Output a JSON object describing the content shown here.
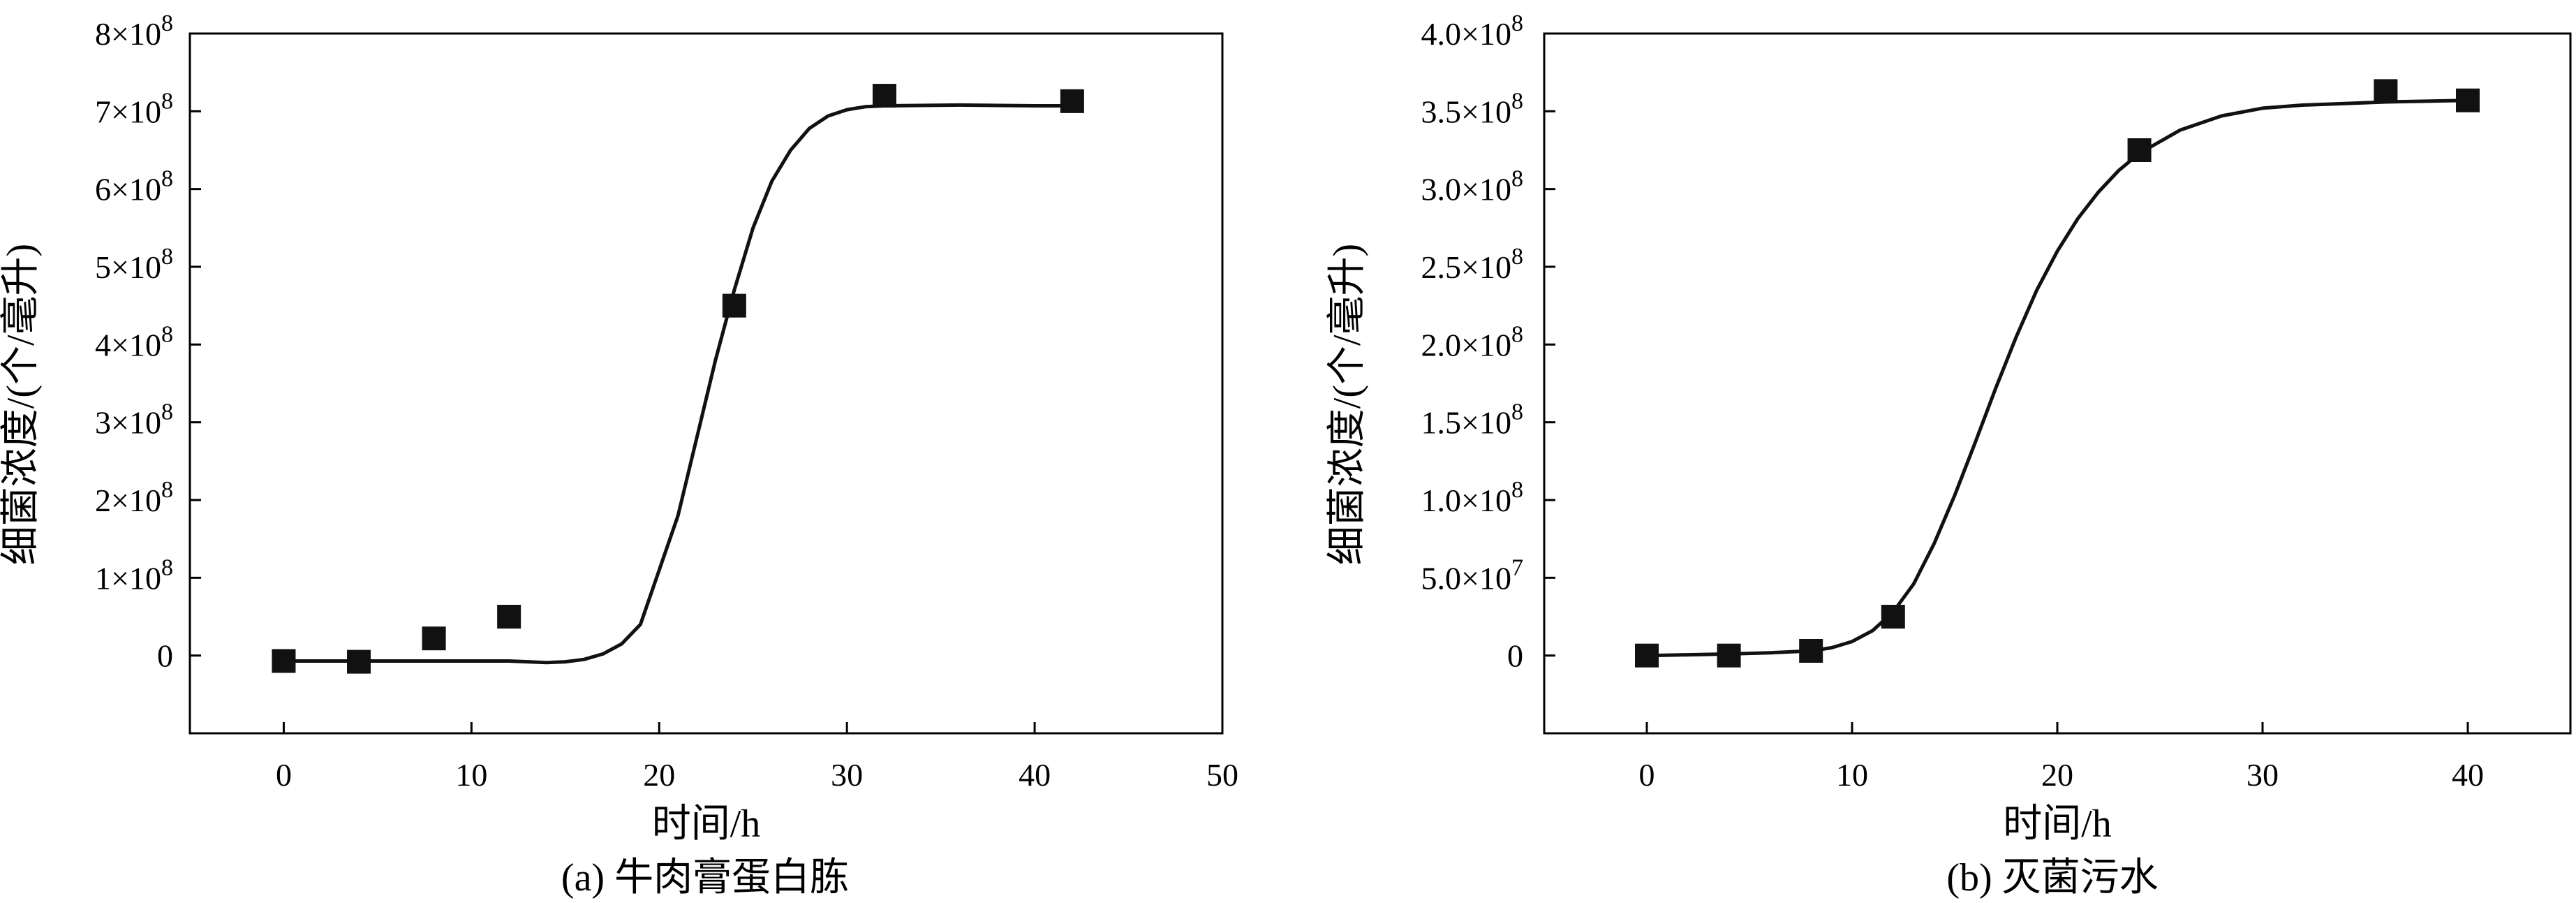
{
  "chart_data": [
    {
      "type": "scatter",
      "caption": "(a) 牛肉膏蛋白胨",
      "xlabel": "时间/h",
      "ylabel": "细菌浓度/(个/毫升)",
      "xlim": [
        -5,
        50
      ],
      "ylim": [
        -100000000,
        800000000
      ],
      "xticks": [
        0,
        10,
        20,
        30,
        40,
        50
      ],
      "yticks": [
        {
          "value": 0,
          "mantissa": "0",
          "exponent": ""
        },
        {
          "value": 100000000,
          "mantissa": "1×10",
          "exponent": "8"
        },
        {
          "value": 200000000,
          "mantissa": "2×10",
          "exponent": "8"
        },
        {
          "value": 300000000,
          "mantissa": "3×10",
          "exponent": "8"
        },
        {
          "value": 400000000,
          "mantissa": "4×10",
          "exponent": "8"
        },
        {
          "value": 500000000,
          "mantissa": "5×10",
          "exponent": "8"
        },
        {
          "value": 600000000,
          "mantissa": "6×10",
          "exponent": "8"
        },
        {
          "value": 700000000,
          "mantissa": "7×10",
          "exponent": "8"
        },
        {
          "value": 800000000,
          "mantissa": "8×10",
          "exponent": "8"
        }
      ],
      "points": [
        {
          "x": 0,
          "y": -7000000
        },
        {
          "x": 4,
          "y": -8000000
        },
        {
          "x": 8,
          "y": 22000000
        },
        {
          "x": 12,
          "y": 50000000
        },
        {
          "x": 24,
          "y": 450000000
        },
        {
          "x": 32,
          "y": 720000000
        },
        {
          "x": 42,
          "y": 713000000
        }
      ],
      "fit_curve": [
        {
          "x": 0,
          "y": -7000000
        },
        {
          "x": 4,
          "y": -7000000
        },
        {
          "x": 8,
          "y": -7000000
        },
        {
          "x": 12,
          "y": -7000000
        },
        {
          "x": 13,
          "y": -8000000
        },
        {
          "x": 14,
          "y": -9000000
        },
        {
          "x": 15,
          "y": -8000000
        },
        {
          "x": 16,
          "y": -5000000
        },
        {
          "x": 17,
          "y": 2000000
        },
        {
          "x": 18,
          "y": 15000000
        },
        {
          "x": 19,
          "y": 40000000
        },
        {
          "x": 20,
          "y": 110000000
        },
        {
          "x": 21,
          "y": 180000000
        },
        {
          "x": 22,
          "y": 280000000
        },
        {
          "x": 23,
          "y": 380000000
        },
        {
          "x": 24,
          "y": 470000000
        },
        {
          "x": 25,
          "y": 550000000
        },
        {
          "x": 26,
          "y": 610000000
        },
        {
          "x": 27,
          "y": 650000000
        },
        {
          "x": 28,
          "y": 678000000
        },
        {
          "x": 29,
          "y": 694000000
        },
        {
          "x": 30,
          "y": 702000000
        },
        {
          "x": 31,
          "y": 706000000
        },
        {
          "x": 32,
          "y": 707000000
        },
        {
          "x": 36,
          "y": 708000000
        },
        {
          "x": 40,
          "y": 707000000
        },
        {
          "x": 42,
          "y": 707000000
        }
      ]
    },
    {
      "type": "scatter",
      "caption": "(b) 灭菌污水",
      "xlabel": "时间/h",
      "ylabel": "细菌浓度/(个/毫升)",
      "xlim": [
        -5,
        45
      ],
      "ylim": [
        -50000000,
        400000000
      ],
      "xticks": [
        0,
        10,
        20,
        30,
        40
      ],
      "yticks": [
        {
          "value": 0,
          "mantissa": "0",
          "exponent": ""
        },
        {
          "value": 50000000,
          "mantissa": "5.0×10",
          "exponent": "7"
        },
        {
          "value": 100000000,
          "mantissa": "1.0×10",
          "exponent": "8"
        },
        {
          "value": 150000000,
          "mantissa": "1.5×10",
          "exponent": "8"
        },
        {
          "value": 200000000,
          "mantissa": "2.0×10",
          "exponent": "8"
        },
        {
          "value": 250000000,
          "mantissa": "2.5×10",
          "exponent": "8"
        },
        {
          "value": 300000000,
          "mantissa": "3.0×10",
          "exponent": "8"
        },
        {
          "value": 350000000,
          "mantissa": "3.5×10",
          "exponent": "8"
        },
        {
          "value": 400000000,
          "mantissa": "4.0×10",
          "exponent": "8"
        }
      ],
      "points": [
        {
          "x": 0,
          "y": 0
        },
        {
          "x": 4,
          "y": 0
        },
        {
          "x": 8,
          "y": 3000000
        },
        {
          "x": 12,
          "y": 25000000
        },
        {
          "x": 24,
          "y": 325000000
        },
        {
          "x": 36,
          "y": 363000000
        },
        {
          "x": 40,
          "y": 357000000
        }
      ],
      "fit_curve": [
        {
          "x": 0,
          "y": 0
        },
        {
          "x": 2,
          "y": 500000
        },
        {
          "x": 4,
          "y": 1000000
        },
        {
          "x": 6,
          "y": 1800000
        },
        {
          "x": 8,
          "y": 3000000
        },
        {
          "x": 9,
          "y": 5000000
        },
        {
          "x": 10,
          "y": 9000000
        },
        {
          "x": 11,
          "y": 16000000
        },
        {
          "x": 12,
          "y": 28000000
        },
        {
          "x": 13,
          "y": 46000000
        },
        {
          "x": 14,
          "y": 72000000
        },
        {
          "x": 15,
          "y": 103000000
        },
        {
          "x": 16,
          "y": 137000000
        },
        {
          "x": 17,
          "y": 172000000
        },
        {
          "x": 18,
          "y": 205000000
        },
        {
          "x": 19,
          "y": 235000000
        },
        {
          "x": 20,
          "y": 260000000
        },
        {
          "x": 21,
          "y": 281000000
        },
        {
          "x": 22,
          "y": 298000000
        },
        {
          "x": 23,
          "y": 312000000
        },
        {
          "x": 24,
          "y": 323000000
        },
        {
          "x": 26,
          "y": 338000000
        },
        {
          "x": 28,
          "y": 347000000
        },
        {
          "x": 30,
          "y": 352000000
        },
        {
          "x": 32,
          "y": 354000000
        },
        {
          "x": 34,
          "y": 355000000
        },
        {
          "x": 36,
          "y": 356000000
        },
        {
          "x": 38,
          "y": 356500000
        },
        {
          "x": 40,
          "y": 357000000
        }
      ]
    }
  ]
}
